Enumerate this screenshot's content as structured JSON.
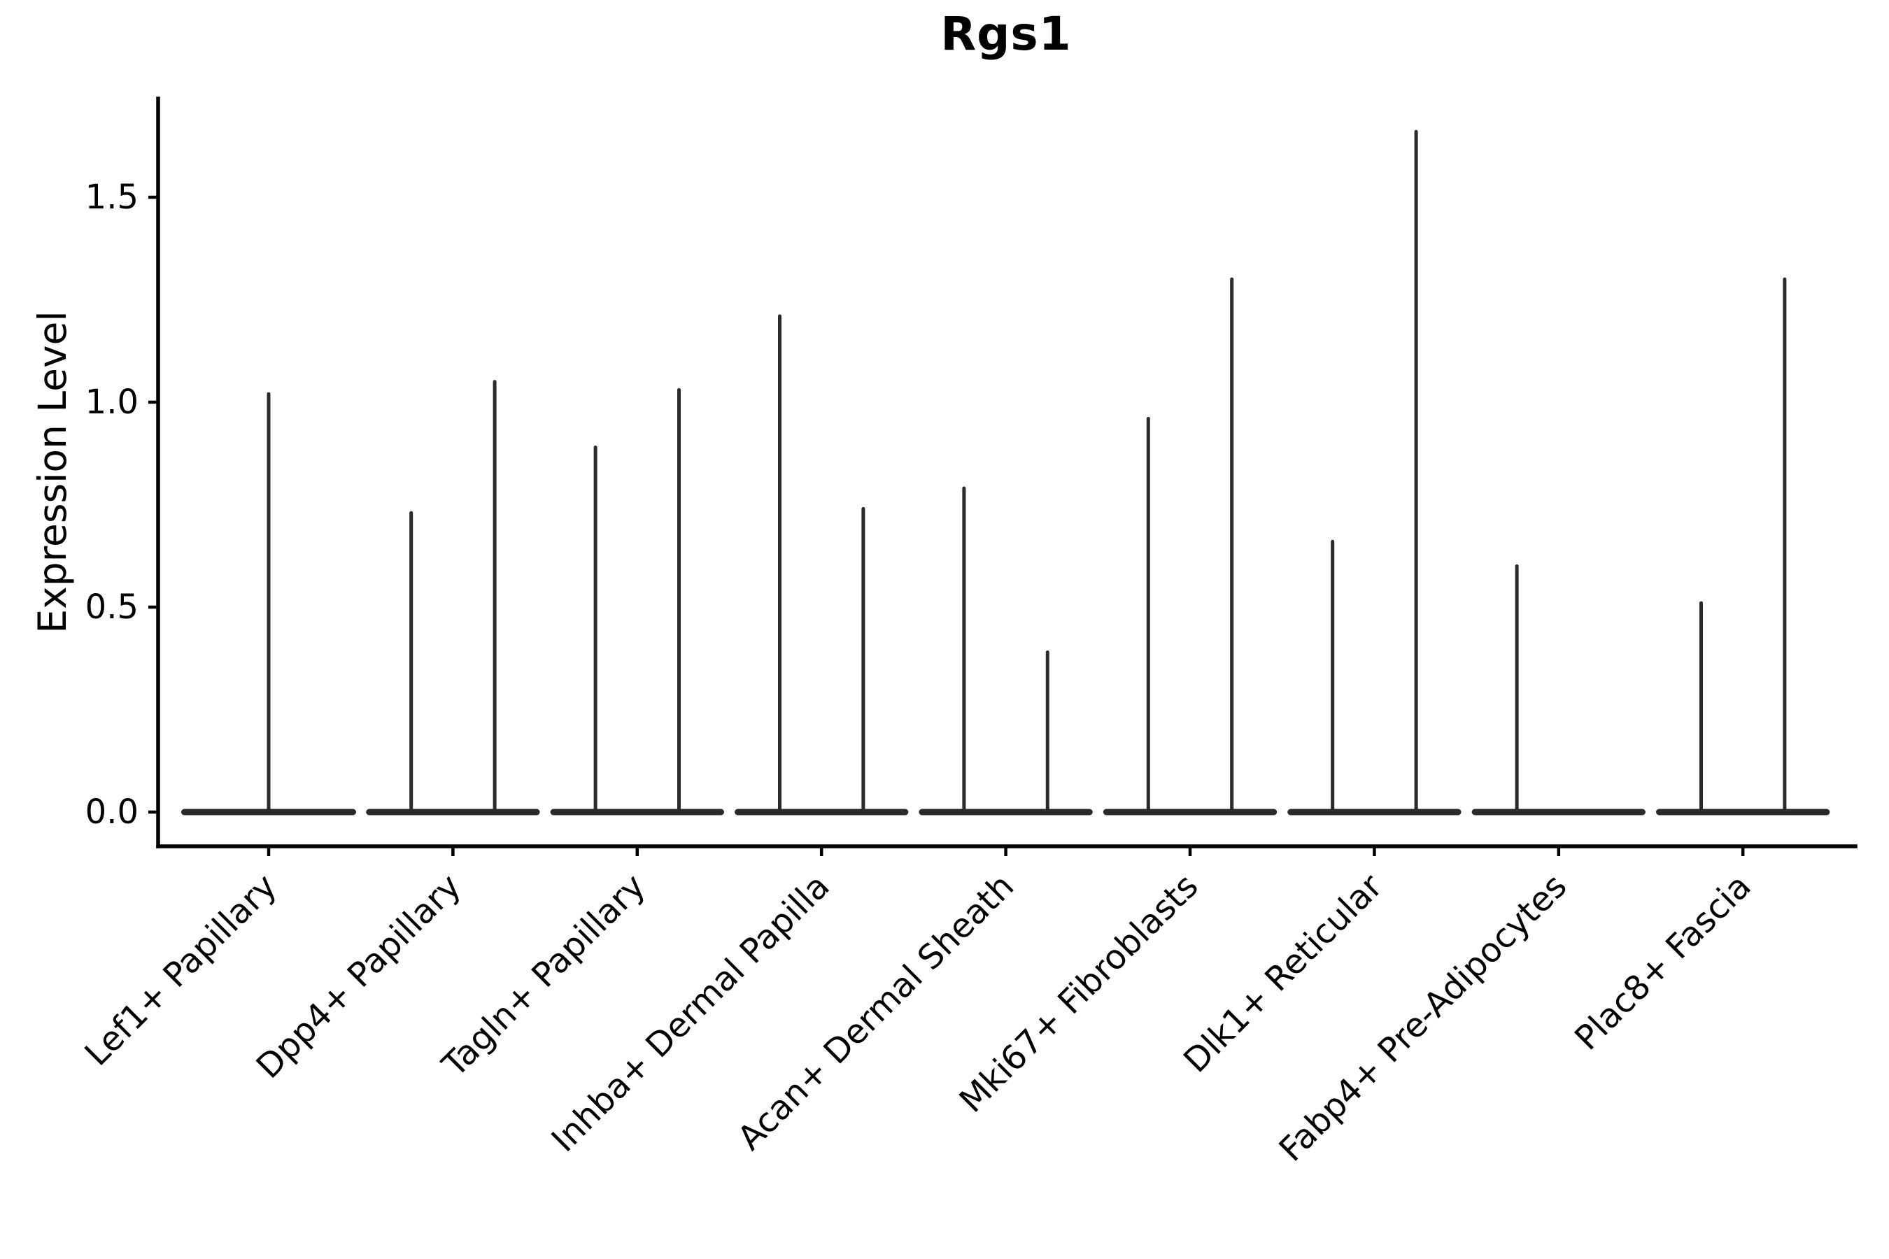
{
  "figure": {
    "title": "Rgs1",
    "ylabel": "Expression Level"
  },
  "chart_data": {
    "type": "violin",
    "title": "Rgs1",
    "xlabel": "",
    "ylabel": "Expression Level",
    "ylim": [
      0,
      1.74
    ],
    "grid": false,
    "legend": false,
    "violin_color": "#2b2b2b",
    "yticks": [
      0.0,
      0.5,
      1.0,
      1.5
    ],
    "ytick_labels": [
      "0.0",
      "0.5",
      "1.0",
      "1.5"
    ],
    "categories": [
      {
        "label": "Lef1+ Papillary",
        "violins": [
          {
            "slot": "full",
            "max": 1.02
          }
        ]
      },
      {
        "label": "Dpp4+ Papillary",
        "violins": [
          {
            "slot": "left",
            "max": 0.73
          },
          {
            "slot": "right",
            "max": 1.05
          }
        ]
      },
      {
        "label": "Tagln+ Papillary",
        "violins": [
          {
            "slot": "left",
            "max": 0.89
          },
          {
            "slot": "right",
            "max": 1.03
          }
        ]
      },
      {
        "label": "Inhba+ Dermal Papilla",
        "violins": [
          {
            "slot": "left",
            "max": 1.21
          },
          {
            "slot": "right",
            "max": 0.74
          }
        ]
      },
      {
        "label": "Acan+ Dermal Sheath",
        "violins": [
          {
            "slot": "left",
            "max": 0.79
          },
          {
            "slot": "right",
            "max": 0.39
          }
        ]
      },
      {
        "label": "Mki67+ Fibroblasts",
        "violins": [
          {
            "slot": "left",
            "max": 0.96
          },
          {
            "slot": "right",
            "max": 1.3
          }
        ]
      },
      {
        "label": "Dlk1+ Reticular",
        "violins": [
          {
            "slot": "left",
            "max": 0.66
          },
          {
            "slot": "right",
            "max": 1.66
          }
        ]
      },
      {
        "label": "Fabp4+ Pre-Adipocytes",
        "violins": [
          {
            "slot": "left",
            "max": 0.6
          },
          {
            "slot": "right",
            "max": 0.0
          }
        ]
      },
      {
        "label": "Plac8+ Fascia",
        "violins": [
          {
            "slot": "left",
            "max": 0.51
          },
          {
            "slot": "right",
            "max": 1.3
          }
        ]
      }
    ]
  }
}
